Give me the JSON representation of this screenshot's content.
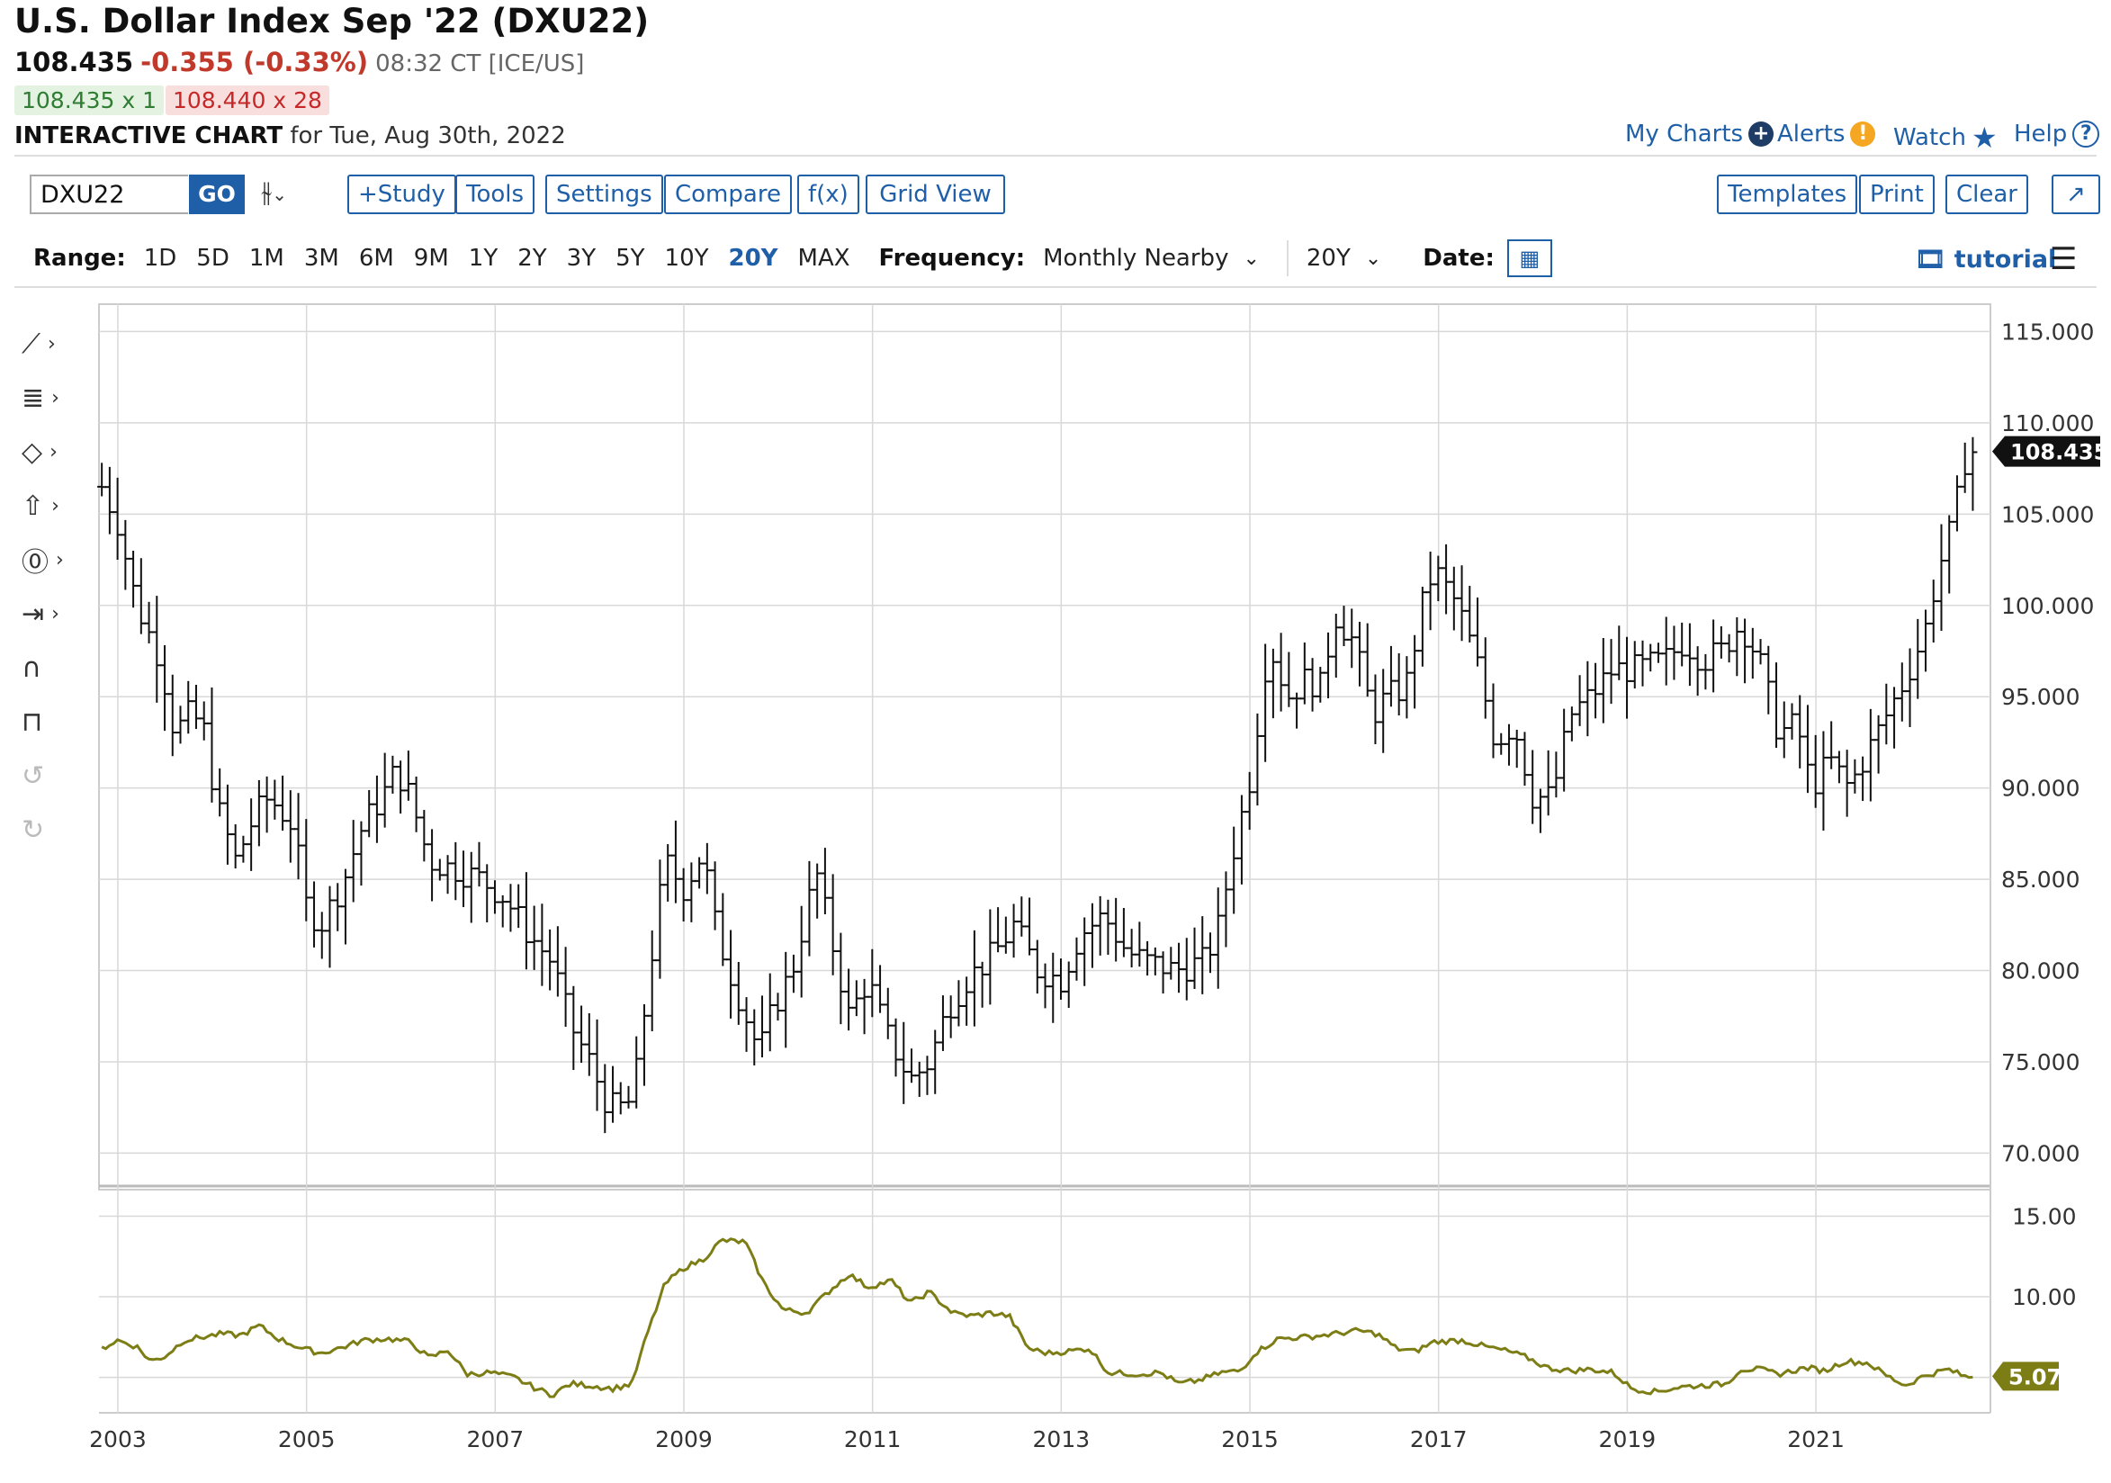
{
  "header": {
    "title": "U.S. Dollar Index Sep '22 (DXU22)",
    "last": "108.435",
    "change": "-0.355 (-0.33%)",
    "time": "08:32 CT [ICE/US]",
    "bid": "108.435 x 1",
    "ask": "108.440 x 28",
    "chart_label": "INTERACTIVE CHART",
    "chart_date": "for Tue, Aug 30th, 2022"
  },
  "top_links": {
    "my_charts": "My Charts",
    "alerts": "Alerts",
    "watch": "Watch",
    "help": "Help"
  },
  "toolbar": {
    "symbol": "DXU22",
    "go": "GO",
    "study": "+Study",
    "tools": "Tools",
    "settings": "Settings",
    "compare": "Compare",
    "fx": "f(x)",
    "grid_view": "Grid View",
    "templates": "Templates",
    "print": "Print",
    "clear": "Clear"
  },
  "range": {
    "label": "Range:",
    "options": [
      "1D",
      "5D",
      "1M",
      "3M",
      "6M",
      "9M",
      "1Y",
      "2Y",
      "3Y",
      "5Y",
      "10Y",
      "20Y",
      "MAX"
    ],
    "active": "20Y",
    "frequency_label": "Frequency:",
    "frequency": "Monthly Nearby",
    "period": "20Y",
    "date_label": "Date:",
    "tutorial": "tutorial"
  },
  "icons": [
    "line-tool-icon",
    "fib-tool-icon",
    "shape-tool-icon",
    "arrow-tool-icon",
    "text-tool-icon",
    "measure-tool-icon",
    "magnet-icon",
    "unlock-icon",
    "undo-icon",
    "redo-icon",
    "calendar-icon",
    "menu-icon"
  ],
  "colors": {
    "accent": "#1f5fa8",
    "down": "#c0392b",
    "indicator": "#7d7d16",
    "price_tag": "#111111"
  },
  "chart_data": [
    {
      "type": "ohlc",
      "frequency": "Monthly Nearby",
      "y_ticks": [
        "115.000",
        "110.000",
        "105.000",
        "100.000",
        "95.000",
        "90.000",
        "85.000",
        "80.000",
        "75.000",
        "70.000"
      ],
      "ylim": [
        68,
        116.5
      ],
      "x_ticks": [
        "2003",
        "2005",
        "2007",
        "2009",
        "2011",
        "2013",
        "2015",
        "2017",
        "2019",
        "2021"
      ],
      "xlim": [
        2002.8,
        2022.85
      ],
      "last_price_label": "108.435",
      "last_price": 108.435,
      "grid": true,
      "close_keypoints": [
        [
          2002.83,
          106.5
        ],
        [
          2003.0,
          104.5
        ],
        [
          2003.2,
          100.0
        ],
        [
          2003.45,
          97.0
        ],
        [
          2003.6,
          93.0
        ],
        [
          2003.75,
          94.0
        ],
        [
          2003.9,
          93.5
        ],
        [
          2004.05,
          89.0
        ],
        [
          2004.25,
          86.0
        ],
        [
          2004.45,
          88.5
        ],
        [
          2004.6,
          89.5
        ],
        [
          2004.85,
          88.0
        ],
        [
          2005.0,
          83.5
        ],
        [
          2005.15,
          82.5
        ],
        [
          2005.4,
          85.0
        ],
        [
          2005.6,
          88.0
        ],
        [
          2005.8,
          89.5
        ],
        [
          2005.95,
          91.0
        ],
        [
          2006.1,
          89.5
        ],
        [
          2006.3,
          86.0
        ],
        [
          2006.6,
          85.5
        ],
        [
          2006.85,
          85.0
        ],
        [
          2007.1,
          84.0
        ],
        [
          2007.35,
          82.0
        ],
        [
          2007.6,
          80.5
        ],
        [
          2007.8,
          77.0
        ],
        [
          2008.0,
          75.0
        ],
        [
          2008.2,
          72.5
        ],
        [
          2008.4,
          72.5
        ],
        [
          2008.5,
          74.5
        ],
        [
          2008.65,
          80.5
        ],
        [
          2008.8,
          86.0
        ],
        [
          2009.0,
          84.5
        ],
        [
          2009.2,
          86.5
        ],
        [
          2009.35,
          82.0
        ],
        [
          2009.55,
          79.0
        ],
        [
          2009.8,
          75.5
        ],
        [
          2009.95,
          78.0
        ],
        [
          2010.15,
          80.0
        ],
        [
          2010.4,
          85.5
        ],
        [
          2010.55,
          82.0
        ],
        [
          2010.75,
          77.5
        ],
        [
          2010.95,
          79.5
        ],
        [
          2011.15,
          76.5
        ],
        [
          2011.4,
          74.0
        ],
        [
          2011.6,
          75.0
        ],
        [
          2011.8,
          78.0
        ],
        [
          2012.0,
          79.5
        ],
        [
          2012.3,
          81.0
        ],
        [
          2012.5,
          82.5
        ],
        [
          2012.75,
          80.0
        ],
        [
          2013.0,
          79.5
        ],
        [
          2013.2,
          82.0
        ],
        [
          2013.45,
          83.0
        ],
        [
          2013.7,
          81.0
        ],
        [
          2013.9,
          80.5
        ],
        [
          2014.2,
          80.0
        ],
        [
          2014.5,
          80.5
        ],
        [
          2014.65,
          82.0
        ],
        [
          2014.8,
          86.0
        ],
        [
          2015.0,
          90.5
        ],
        [
          2015.2,
          98.0
        ],
        [
          2015.4,
          95.0
        ],
        [
          2015.6,
          96.0
        ],
        [
          2015.75,
          95.5
        ],
        [
          2015.9,
          99.5
        ],
        [
          2016.1,
          98.0
        ],
        [
          2016.3,
          94.0
        ],
        [
          2016.45,
          95.0
        ],
        [
          2016.65,
          95.5
        ],
        [
          2016.85,
          100.5
        ],
        [
          2016.95,
          102.0
        ],
        [
          2017.2,
          100.0
        ],
        [
          2017.4,
          97.0
        ],
        [
          2017.6,
          92.5
        ],
        [
          2017.8,
          93.5
        ],
        [
          2018.0,
          89.5
        ],
        [
          2018.2,
          89.5
        ],
        [
          2018.4,
          94.0
        ],
        [
          2018.6,
          95.0
        ],
        [
          2018.85,
          96.5
        ],
        [
          2019.1,
          96.5
        ],
        [
          2019.4,
          97.0
        ],
        [
          2019.6,
          98.0
        ],
        [
          2019.8,
          97.0
        ],
        [
          2020.0,
          97.5
        ],
        [
          2020.2,
          99.0
        ],
        [
          2020.4,
          97.0
        ],
        [
          2020.6,
          93.0
        ],
        [
          2020.8,
          93.5
        ],
        [
          2020.95,
          90.0
        ],
        [
          2021.15,
          91.5
        ],
        [
          2021.35,
          90.0
        ],
        [
          2021.55,
          92.0
        ],
        [
          2021.75,
          94.0
        ],
        [
          2021.95,
          96.0
        ],
        [
          2022.15,
          98.5
        ],
        [
          2022.3,
          102.0
        ],
        [
          2022.45,
          104.5
        ],
        [
          2022.6,
          108.5
        ],
        [
          2022.67,
          108.435
        ]
      ]
    },
    {
      "type": "line",
      "y_ticks": [
        "15.00",
        "10.00"
      ],
      "ylim": [
        2.8,
        16.2
      ],
      "last_value_label": "5.07",
      "last_value": 5.07,
      "keypoints": [
        [
          2002.83,
          6.8
        ],
        [
          2003.0,
          7.3
        ],
        [
          2003.2,
          6.9
        ],
        [
          2003.35,
          6.0
        ],
        [
          2003.5,
          6.3
        ],
        [
          2003.7,
          7.3
        ],
        [
          2003.9,
          7.5
        ],
        [
          2004.1,
          7.7
        ],
        [
          2004.3,
          7.6
        ],
        [
          2004.5,
          8.2
        ],
        [
          2004.7,
          7.4
        ],
        [
          2004.95,
          6.8
        ],
        [
          2005.15,
          6.5
        ],
        [
          2005.4,
          6.9
        ],
        [
          2005.6,
          7.3
        ],
        [
          2005.85,
          7.4
        ],
        [
          2006.1,
          7.2
        ],
        [
          2006.3,
          6.2
        ],
        [
          2006.5,
          6.7
        ],
        [
          2006.7,
          5.2
        ],
        [
          2006.95,
          5.3
        ],
        [
          2007.2,
          5.0
        ],
        [
          2007.4,
          4.4
        ],
        [
          2007.6,
          3.9
        ],
        [
          2007.8,
          4.6
        ],
        [
          2008.0,
          4.5
        ],
        [
          2008.25,
          4.3
        ],
        [
          2008.45,
          4.6
        ],
        [
          2008.6,
          7.5
        ],
        [
          2008.8,
          10.8
        ],
        [
          2009.0,
          11.8
        ],
        [
          2009.2,
          12.3
        ],
        [
          2009.4,
          13.5
        ],
        [
          2009.65,
          13.4
        ],
        [
          2009.85,
          10.8
        ],
        [
          2010.05,
          9.2
        ],
        [
          2010.3,
          9.0
        ],
        [
          2010.55,
          10.4
        ],
        [
          2010.75,
          11.4
        ],
        [
          2010.95,
          10.6
        ],
        [
          2011.2,
          11.0
        ],
        [
          2011.4,
          9.6
        ],
        [
          2011.6,
          10.3
        ],
        [
          2011.85,
          9.0
        ],
        [
          2012.05,
          8.8
        ],
        [
          2012.25,
          9.0
        ],
        [
          2012.45,
          8.8
        ],
        [
          2012.65,
          6.8
        ],
        [
          2012.85,
          6.5
        ],
        [
          2013.05,
          6.6
        ],
        [
          2013.3,
          6.8
        ],
        [
          2013.5,
          5.3
        ],
        [
          2013.8,
          5.2
        ],
        [
          2014.05,
          5.3
        ],
        [
          2014.25,
          4.6
        ],
        [
          2014.45,
          4.8
        ],
        [
          2014.7,
          5.3
        ],
        [
          2014.9,
          5.4
        ],
        [
          2015.05,
          6.5
        ],
        [
          2015.3,
          7.4
        ],
        [
          2015.6,
          7.5
        ],
        [
          2015.9,
          7.7
        ],
        [
          2016.15,
          7.9
        ],
        [
          2016.35,
          7.7
        ],
        [
          2016.55,
          6.8
        ],
        [
          2016.75,
          6.6
        ],
        [
          2016.95,
          7.2
        ],
        [
          2017.25,
          7.3
        ],
        [
          2017.5,
          6.9
        ],
        [
          2017.75,
          6.6
        ],
        [
          2017.95,
          6.2
        ],
        [
          2018.15,
          5.6
        ],
        [
          2018.4,
          5.4
        ],
        [
          2018.6,
          5.5
        ],
        [
          2018.85,
          5.3
        ],
        [
          2019.05,
          4.3
        ],
        [
          2019.3,
          4.1
        ],
        [
          2019.55,
          4.4
        ],
        [
          2019.8,
          4.5
        ],
        [
          2020.05,
          4.6
        ],
        [
          2020.2,
          5.5
        ],
        [
          2020.4,
          5.5
        ],
        [
          2020.6,
          5.2
        ],
        [
          2020.9,
          5.6
        ],
        [
          2021.1,
          5.4
        ],
        [
          2021.3,
          6.0
        ],
        [
          2021.55,
          5.9
        ],
        [
          2021.75,
          5.1
        ],
        [
          2021.95,
          4.5
        ],
        [
          2022.15,
          5.1
        ],
        [
          2022.4,
          5.5
        ],
        [
          2022.6,
          5.0
        ],
        [
          2022.67,
          5.07
        ]
      ]
    }
  ]
}
